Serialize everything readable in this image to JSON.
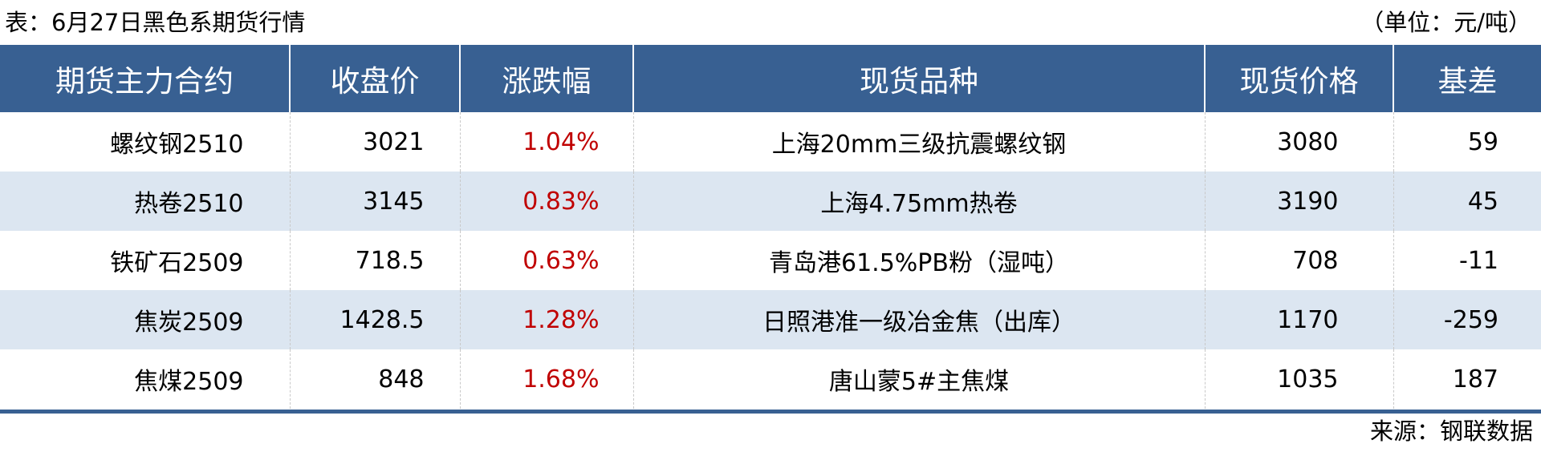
{
  "title": "表：6月27日黑色系期货行情",
  "unit": "（单位：元/吨）",
  "colors": {
    "header_bg": "#386092",
    "alt_row_bg": "#dce6f1",
    "change_text": "#c00000"
  },
  "headers": [
    "期货主力合约",
    "收盘价",
    "涨跌幅",
    "现货品种",
    "现货价格",
    "基差"
  ],
  "rows": [
    {
      "contract": "螺纹钢2510",
      "close": "3021",
      "change": "1.04%",
      "spot": "上海20mm三级抗震螺纹钢",
      "spot_price": "3080",
      "basis": "59"
    },
    {
      "contract": "热卷2510",
      "close": "3145",
      "change": "0.83%",
      "spot": "上海4.75mm热卷",
      "spot_price": "3190",
      "basis": "45"
    },
    {
      "contract": "铁矿石2509",
      "close": "718.5",
      "change": "0.63%",
      "spot": "青岛港61.5%PB粉（湿吨）",
      "spot_price": "708",
      "basis": "-11"
    },
    {
      "contract": "焦炭2509",
      "close": "1428.5",
      "change": "1.28%",
      "spot": "日照港准一级冶金焦（出库）",
      "spot_price": "1170",
      "basis": "-259"
    },
    {
      "contract": "焦煤2509",
      "close": "848",
      "change": "1.68%",
      "spot": "唐山蒙5#主焦煤",
      "spot_price": "1035",
      "basis": "187"
    }
  ],
  "source": "来源：钢联数据"
}
